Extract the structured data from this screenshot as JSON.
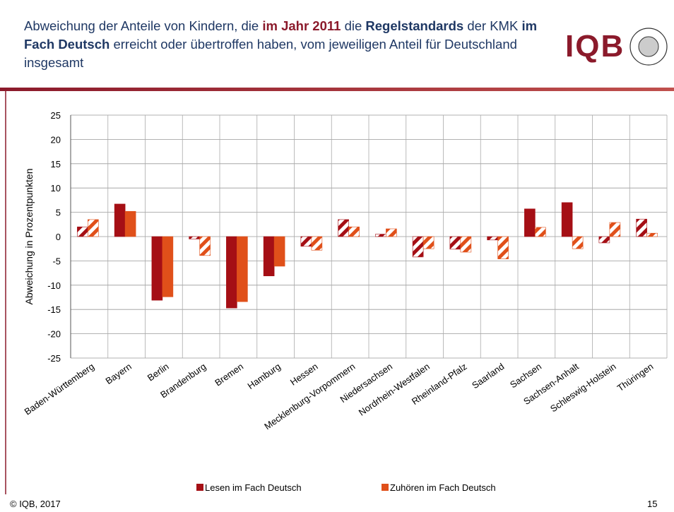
{
  "header": {
    "title_parts": [
      {
        "text": "Abweichung der Anteile von Kindern, die ",
        "bold": false,
        "color": "#1f3864"
      },
      {
        "text": "im Jahr 2011",
        "bold": true,
        "color": "#8b1a2b"
      },
      {
        "text": " die ",
        "bold": false,
        "color": "#1f3864"
      },
      {
        "text": "Regelstandards",
        "bold": true,
        "color": "#1f3864"
      },
      {
        "text": " der KMK ",
        "bold": false,
        "color": "#1f3864"
      },
      {
        "text": "im Fach Deutsch",
        "bold": true,
        "color": "#1f3864"
      },
      {
        "text": " erreicht oder übertroffen haben, vom jeweiligen Anteil für Deutschland insgesamt",
        "bold": false,
        "color": "#1f3864"
      }
    ],
    "logo_text": "IQB"
  },
  "footer": {
    "copyright": "© IQB, 2017",
    "page": "15"
  },
  "chart_data": {
    "type": "bar",
    "y_label": "Abweichung in Prozentpunkten",
    "categories": [
      "Baden-Württemberg",
      "Bayern",
      "Berlin",
      "Brandenburg",
      "Bremen",
      "Hamburg",
      "Hessen",
      "Mecklenburg-Vorpommern",
      "Niedersachsen",
      "Nordrhein-Westfalen",
      "Rheinland-Pfalz",
      "Saarland",
      "Sachsen",
      "Sachsen-Anhalt",
      "Schleswig-Holstein",
      "Thüringen"
    ],
    "series": [
      {
        "name": "Lesen im Fach Deutsch",
        "color": "#a50f15",
        "values": [
          2.0,
          6.7,
          -13.1,
          -0.5,
          -14.7,
          -8.1,
          -2.0,
          3.5,
          0.5,
          -4.2,
          -2.6,
          -0.7,
          5.7,
          7.0,
          -1.3,
          3.6
        ],
        "hatched": [
          true,
          false,
          false,
          true,
          false,
          false,
          true,
          true,
          true,
          true,
          true,
          true,
          false,
          false,
          true,
          true
        ]
      },
      {
        "name": "Zuhören im Fach Deutsch",
        "color": "#e0501a",
        "values": [
          3.5,
          5.2,
          -12.4,
          -3.9,
          -13.4,
          -6.1,
          -2.8,
          2.0,
          1.6,
          -2.5,
          -3.2,
          -4.6,
          1.9,
          -2.5,
          2.9,
          0.7
        ],
        "hatched": [
          true,
          false,
          false,
          true,
          false,
          false,
          true,
          true,
          true,
          true,
          true,
          true,
          true,
          true,
          true,
          true
        ]
      }
    ],
    "ylim": [
      -25,
      25
    ],
    "yticks": [
      -25,
      -20,
      -15,
      -10,
      -5,
      0,
      5,
      10,
      15,
      20,
      25
    ],
    "grid": true,
    "legend": "bottom"
  }
}
